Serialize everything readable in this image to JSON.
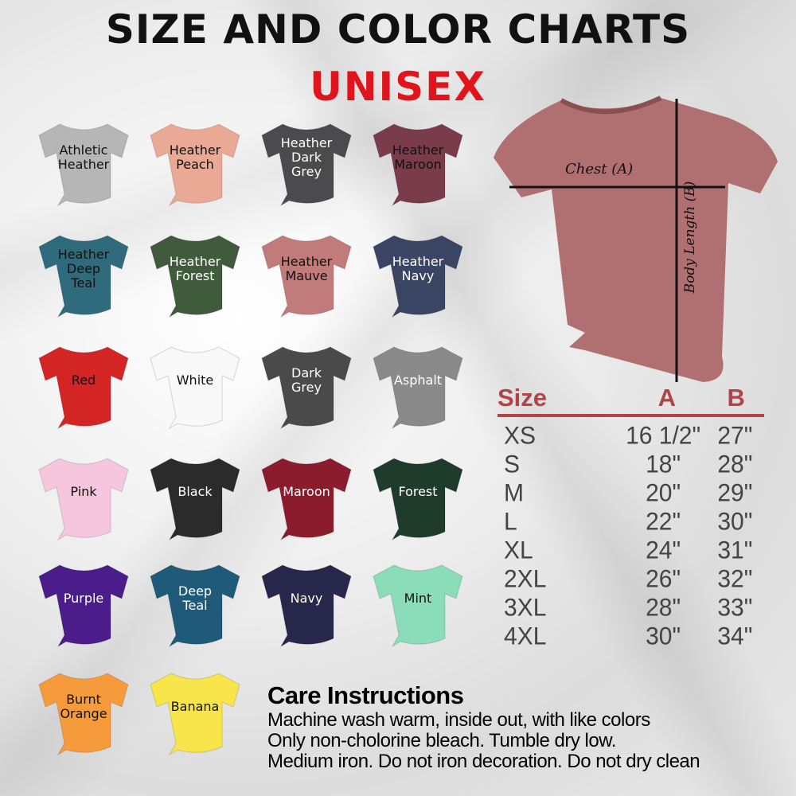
{
  "header": {
    "title": "SIZE AND COLOR CHARTS",
    "subtitle": "UNISEX",
    "subtitle_color": "#e0141c"
  },
  "colors": [
    {
      "lines": [
        "Athletic",
        "Heather"
      ],
      "hex": "#b6b6b6",
      "text": "#111111"
    },
    {
      "lines": [
        "Heather",
        "Peach"
      ],
      "hex": "#e9a994",
      "text": "#111111"
    },
    {
      "lines": [
        "Heather",
        "Dark",
        "Grey"
      ],
      "hex": "#4b4b4e",
      "text": "#ffffff"
    },
    {
      "lines": [
        "Heather",
        "Maroon"
      ],
      "hex": "#7a3b4a",
      "text": "#111111"
    },
    {
      "lines": [
        "Heather",
        "Deep",
        "Teal"
      ],
      "hex": "#2f6b7d",
      "text": "#111111"
    },
    {
      "lines": [
        "Heather",
        "Forest"
      ],
      "hex": "#3f5b3b",
      "text": "#ffffff"
    },
    {
      "lines": [
        "Heather",
        "Mauve"
      ],
      "hex": "#c27b7b",
      "text": "#111111"
    },
    {
      "lines": [
        "Heather",
        "Navy"
      ],
      "hex": "#3a4564",
      "text": "#ffffff"
    },
    {
      "lines": [
        "Red"
      ],
      "hex": "#d42525",
      "text": "#111111"
    },
    {
      "lines": [
        "White"
      ],
      "hex": "#f8f8f8",
      "text": "#111111"
    },
    {
      "lines": [
        "Dark",
        "Grey"
      ],
      "hex": "#4a4a4b",
      "text": "#ffffff"
    },
    {
      "lines": [
        "Asphalt"
      ],
      "hex": "#8a8a8b",
      "text": "#ffffff"
    },
    {
      "lines": [
        "Pink"
      ],
      "hex": "#f6c6de",
      "text": "#111111"
    },
    {
      "lines": [
        "Black"
      ],
      "hex": "#2b2b2b",
      "text": "#ffffff"
    },
    {
      "lines": [
        "Maroon"
      ],
      "hex": "#8a1c2d",
      "text": "#ffffff"
    },
    {
      "lines": [
        "Forest"
      ],
      "hex": "#1f3b2b",
      "text": "#ffffff"
    },
    {
      "lines": [
        "Purple"
      ],
      "hex": "#4b1d8a",
      "text": "#ffffff"
    },
    {
      "lines": [
        "Deep",
        "Teal"
      ],
      "hex": "#1f5b79",
      "text": "#ffffff"
    },
    {
      "lines": [
        "Navy"
      ],
      "hex": "#27274b",
      "text": "#ffffff"
    },
    {
      "lines": [
        "Mint"
      ],
      "hex": "#8bdcb9",
      "text": "#111111"
    },
    {
      "lines": [
        "Burnt",
        "Orange"
      ],
      "hex": "#f59b3b",
      "text": "#111111"
    },
    {
      "lines": [
        "Banana"
      ],
      "hex": "#f8e54b",
      "text": "#111111"
    }
  ],
  "diagram": {
    "chest_label": "Chest (A)",
    "body_label": "Body Length (B)",
    "shirt_color": "#b06f70"
  },
  "size_table": {
    "headers": [
      "Size",
      "A",
      "B"
    ],
    "header_color": "#b04448",
    "rows": [
      [
        "XS",
        "16 1/2\"",
        "27\""
      ],
      [
        "S",
        "18\"",
        "28\""
      ],
      [
        "M",
        "20\"",
        "29\""
      ],
      [
        "L",
        "22\"",
        "30\""
      ],
      [
        "XL",
        "24\"",
        "31\""
      ],
      [
        "2XL",
        "26\"",
        "32\""
      ],
      [
        "3XL",
        "28\"",
        "33\""
      ],
      [
        "4XL",
        "30\"",
        "34\""
      ]
    ]
  },
  "care": {
    "title": "Care Instructions",
    "lines": [
      "Machine wash warm, inside out, with like colors",
      "Only non-cholorine bleach. Tumble dry low.",
      "Medium iron. Do not iron decoration. Do not dry clean"
    ]
  }
}
